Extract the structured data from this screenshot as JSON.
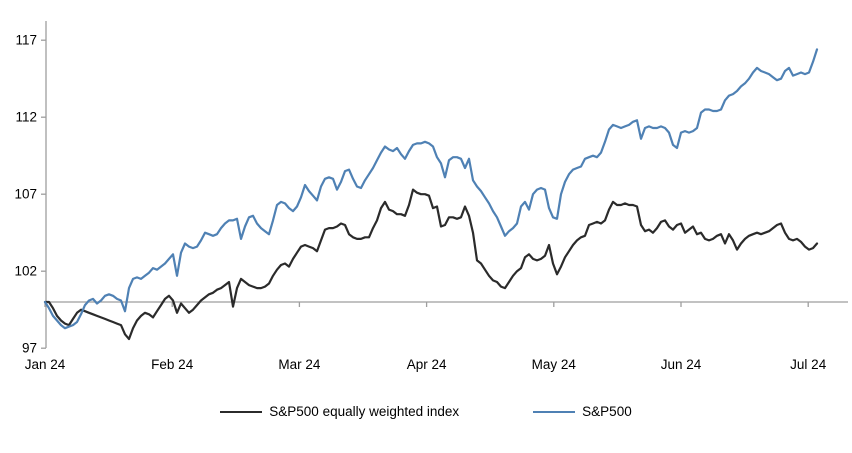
{
  "chart_data": {
    "type": "line",
    "title": "",
    "xlabel": "",
    "ylabel": "",
    "y_axis": {
      "ticks": [
        97,
        102,
        107,
        112,
        117
      ],
      "min": 97,
      "max": 117.5,
      "crosses_at": 100
    },
    "x_axis": {
      "labels": [
        "Jan 24",
        "Feb 24",
        "Mar 24",
        "Apr 24",
        "May 24",
        "Jun 24",
        "Jul 24"
      ]
    },
    "legend_position": "bottom-center",
    "grid": "off",
    "baseline_value": 100,
    "series": [
      {
        "name": "S&P500 equally weighted index",
        "color": "#2b2b2b",
        "values": [
          100.0,
          100.0,
          99.6,
          99.1,
          98.8,
          98.6,
          98.5,
          98.9,
          99.3,
          99.5,
          99.4,
          99.3,
          99.2,
          99.1,
          99.0,
          98.9,
          98.8,
          98.7,
          98.6,
          98.5,
          97.9,
          97.6,
          98.3,
          98.8,
          99.1,
          99.3,
          99.2,
          99.0,
          99.4,
          99.8,
          100.2,
          100.4,
          100.1,
          99.3,
          99.9,
          99.6,
          99.3,
          99.5,
          99.8,
          100.1,
          100.3,
          100.5,
          100.6,
          100.8,
          100.9,
          101.1,
          101.3,
          99.7,
          100.9,
          101.5,
          101.3,
          101.1,
          101.0,
          100.9,
          100.9,
          101.0,
          101.2,
          101.7,
          102.1,
          102.4,
          102.5,
          102.3,
          102.8,
          103.2,
          103.6,
          103.7,
          103.6,
          103.5,
          103.3,
          104.0,
          104.7,
          104.8,
          104.8,
          104.9,
          105.1,
          105.0,
          104.4,
          104.2,
          104.1,
          104.1,
          104.2,
          104.2,
          104.8,
          105.3,
          106.1,
          106.5,
          106.0,
          105.9,
          105.7,
          105.7,
          105.6,
          106.3,
          107.3,
          107.1,
          107.0,
          107.0,
          106.9,
          106.1,
          106.2,
          104.9,
          105.0,
          105.5,
          105.5,
          105.4,
          105.5,
          106.2,
          105.6,
          104.5,
          102.7,
          102.5,
          102.1,
          101.7,
          101.4,
          101.3,
          101.0,
          100.9,
          101.3,
          101.7,
          102.0,
          102.2,
          102.9,
          103.1,
          102.8,
          102.7,
          102.8,
          103.0,
          103.7,
          102.5,
          101.8,
          102.3,
          102.9,
          103.3,
          103.7,
          104.0,
          104.2,
          104.3,
          105.0,
          105.1,
          105.2,
          105.1,
          105.3,
          106.0,
          106.5,
          106.3,
          106.3,
          106.4,
          106.3,
          106.3,
          106.2,
          105.0,
          104.6,
          104.7,
          104.5,
          104.8,
          105.2,
          105.3,
          104.9,
          104.7,
          105.0,
          105.1,
          104.5,
          104.7,
          104.9,
          104.4,
          104.5,
          104.1,
          104.0,
          104.1,
          104.3,
          104.4,
          103.8,
          104.4,
          104.0,
          103.4,
          103.8,
          104.1,
          104.3,
          104.4,
          104.5,
          104.4,
          104.5,
          104.6,
          104.8,
          105.0,
          105.1,
          104.5,
          104.1,
          104.0,
          104.1,
          103.9,
          103.6,
          103.4,
          103.5,
          103.8
        ]
      },
      {
        "name": "S&P500",
        "color": "#4f81b4",
        "values": [
          100.0,
          99.6,
          99.1,
          98.8,
          98.5,
          98.3,
          98.4,
          98.5,
          98.7,
          99.2,
          99.8,
          100.1,
          100.2,
          99.9,
          100.1,
          100.4,
          100.5,
          100.4,
          100.2,
          100.1,
          99.4,
          100.9,
          101.5,
          101.6,
          101.5,
          101.7,
          101.9,
          102.2,
          102.1,
          102.3,
          102.5,
          102.8,
          103.1,
          101.7,
          103.2,
          103.8,
          103.6,
          103.5,
          103.6,
          104.0,
          104.5,
          104.4,
          104.3,
          104.4,
          104.8,
          105.1,
          105.3,
          105.3,
          105.4,
          104.1,
          104.9,
          105.5,
          105.6,
          105.1,
          104.8,
          104.6,
          104.4,
          105.3,
          106.3,
          106.5,
          106.4,
          106.1,
          105.9,
          106.2,
          106.8,
          107.6,
          107.2,
          106.9,
          106.6,
          107.5,
          108.0,
          108.1,
          108.0,
          107.3,
          107.8,
          108.5,
          108.6,
          108.0,
          107.5,
          107.4,
          107.9,
          108.3,
          108.7,
          109.2,
          109.7,
          110.1,
          109.9,
          109.8,
          110.0,
          109.6,
          109.3,
          109.8,
          110.2,
          110.3,
          110.3,
          110.4,
          110.3,
          110.1,
          109.4,
          109.0,
          108.1,
          109.2,
          109.4,
          109.4,
          109.3,
          108.7,
          109.3,
          107.9,
          107.5,
          107.2,
          106.8,
          106.4,
          105.9,
          105.5,
          104.9,
          104.3,
          104.6,
          104.8,
          105.1,
          106.2,
          106.5,
          106.0,
          107.0,
          107.3,
          107.4,
          107.3,
          106.1,
          105.5,
          105.4,
          107.0,
          107.8,
          108.3,
          108.6,
          108.7,
          108.8,
          109.3,
          109.4,
          109.5,
          109.4,
          109.7,
          110.4,
          111.2,
          111.5,
          111.4,
          111.3,
          111.4,
          111.5,
          111.7,
          111.8,
          110.6,
          111.3,
          111.4,
          111.3,
          111.3,
          111.4,
          111.3,
          111.0,
          110.2,
          110.0,
          111.0,
          111.1,
          111.0,
          111.1,
          111.3,
          112.3,
          112.5,
          112.5,
          112.4,
          112.4,
          112.5,
          113.1,
          113.4,
          113.5,
          113.7,
          114.0,
          114.2,
          114.5,
          114.9,
          115.2,
          115.0,
          114.9,
          114.8,
          114.6,
          114.4,
          114.5,
          115.0,
          115.2,
          114.7,
          114.8,
          114.9,
          114.8,
          114.9,
          115.6,
          116.4
        ]
      }
    ],
    "colors": {
      "axis_gray": "#9e9e9e",
      "label_black": "#000000"
    }
  },
  "legend": {
    "items": [
      {
        "label": "S&P500 equally weighted index"
      },
      {
        "label": "S&P500"
      }
    ]
  }
}
